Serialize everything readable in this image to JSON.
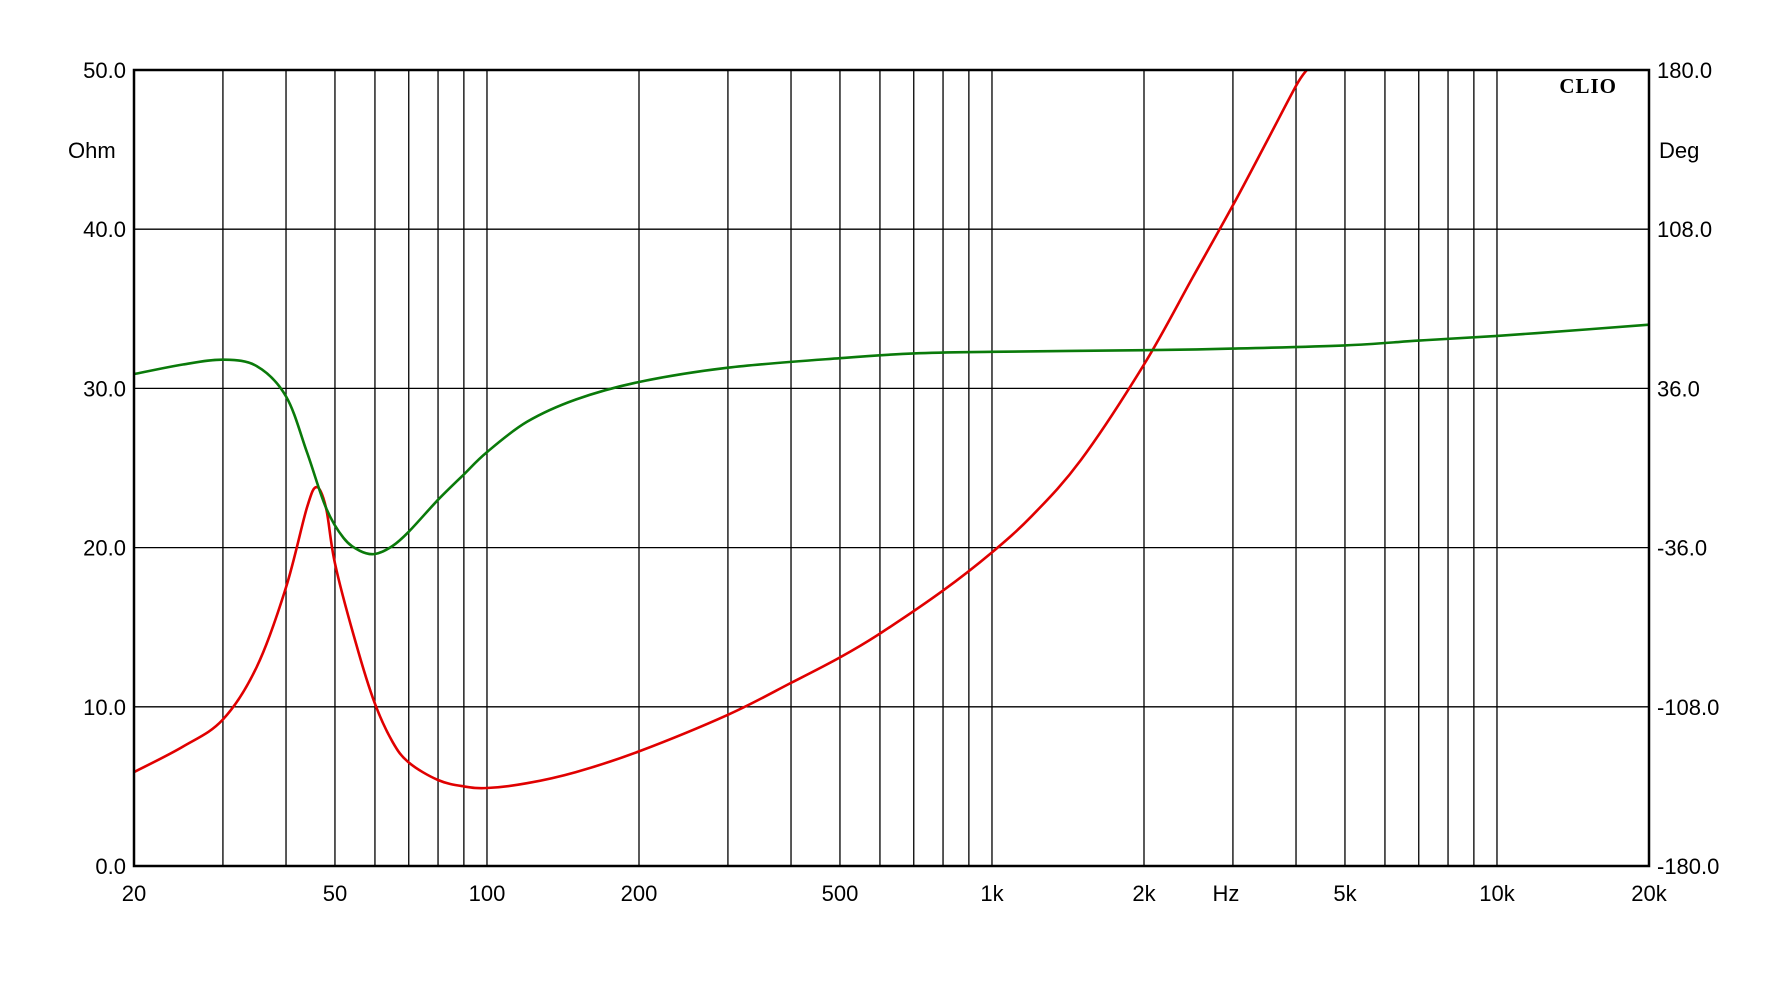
{
  "chart_data": {
    "type": "line",
    "brand": "CLIO",
    "x_unit": "Hz",
    "x_scale": "log",
    "xlim": [
      20,
      20000
    ],
    "x_ticks": [
      {
        "value": 20,
        "label": "20"
      },
      {
        "value": 50,
        "label": "50"
      },
      {
        "value": 100,
        "label": "100"
      },
      {
        "value": 200,
        "label": "200"
      },
      {
        "value": 500,
        "label": "500"
      },
      {
        "value": 1000,
        "label": "1k"
      },
      {
        "value": 2000,
        "label": "2k"
      },
      {
        "value": 5000,
        "label": "5k"
      },
      {
        "value": 10000,
        "label": "10k"
      },
      {
        "value": 20000,
        "label": "20k"
      }
    ],
    "y_left": {
      "unit": "Ohm",
      "lim": [
        0,
        50
      ],
      "ticks": [
        "0.0",
        "10.0",
        "20.0",
        "30.0",
        "40.0",
        "50.0"
      ]
    },
    "y_right": {
      "unit": "Deg",
      "lim": [
        -180,
        180
      ],
      "ticks": [
        "-180.0",
        "-108.0",
        "-36.0",
        "36.0",
        "108.0",
        "180.0"
      ]
    },
    "grid": true,
    "colors": {
      "impedance": "#e00000",
      "phase": "#0a7a0a",
      "grid": "#000000"
    },
    "series": [
      {
        "key": "impedance",
        "axis": "left",
        "color": "#e00000",
        "x": [
          20,
          25,
          30,
          35,
          40,
          44,
          46,
          48,
          50,
          55,
          60,
          65,
          70,
          80,
          90,
          100,
          120,
          150,
          200,
          300,
          400,
          500,
          600,
          800,
          1000,
          1200,
          1500,
          2000,
          2500,
          3000,
          3500,
          4000,
          4200
        ],
        "y": [
          5.9,
          7.5,
          9.2,
          12.5,
          17.5,
          22.5,
          23.8,
          22.5,
          19.0,
          14.0,
          10.2,
          7.8,
          6.5,
          5.4,
          5.0,
          4.9,
          5.2,
          5.9,
          7.2,
          9.5,
          11.5,
          13.1,
          14.6,
          17.3,
          19.7,
          22.0,
          25.5,
          31.5,
          37.0,
          41.5,
          45.5,
          49.0,
          50.0
        ]
      },
      {
        "key": "phase",
        "axis": "left",
        "color": "#0a7a0a",
        "x": [
          20,
          25,
          30,
          35,
          40,
          44,
          48,
          52,
          56,
          60,
          65,
          70,
          80,
          90,
          100,
          120,
          150,
          200,
          300,
          500,
          700,
          1000,
          2000,
          3000,
          5000,
          7000,
          10000,
          15000,
          20000
        ],
        "y": [
          30.9,
          31.5,
          31.8,
          31.4,
          29.5,
          26.0,
          22.5,
          20.6,
          19.8,
          19.6,
          20.1,
          21.0,
          23.0,
          24.6,
          26.0,
          27.9,
          29.3,
          30.4,
          31.3,
          31.9,
          32.2,
          32.3,
          32.4,
          32.5,
          32.7,
          33.0,
          33.3,
          33.7,
          34.0
        ]
      }
    ]
  }
}
